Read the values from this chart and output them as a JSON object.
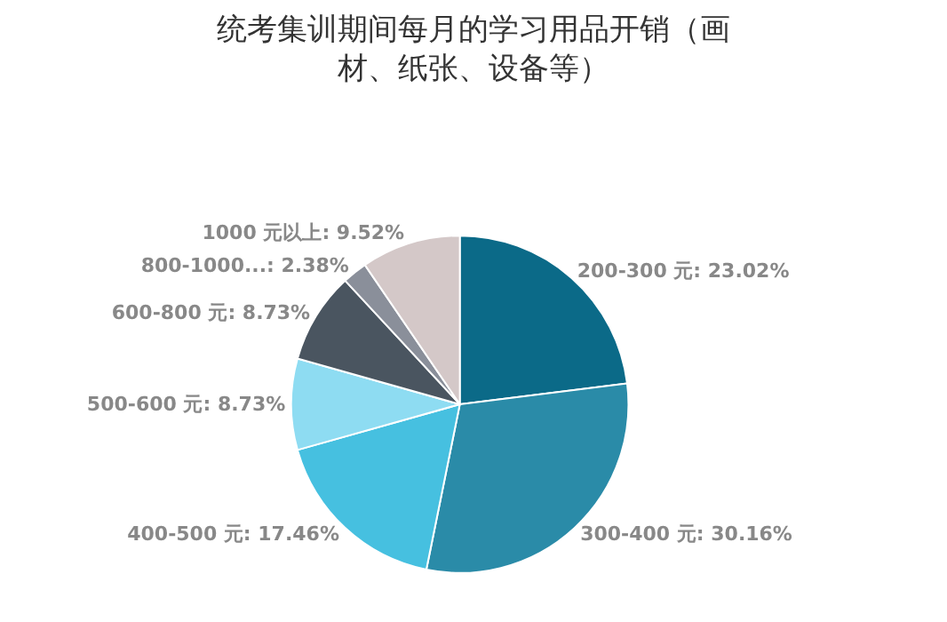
{
  "chart_data": {
    "type": "pie",
    "title": "统考集训期间每月的学习用品开销（画材、纸张、设备等）",
    "categories": [
      "200-300 元: 23.02%",
      "300-400 元: 30.16%",
      "400-500 元: 17.46%",
      "500-600 元: 8.73%",
      "600-800 元: 8.73%",
      "800-1000...: 2.38%",
      "1000 元以上: 9.52%"
    ],
    "values": [
      23.02,
      30.16,
      17.46,
      8.73,
      8.73,
      2.38,
      9.52
    ],
    "colors": [
      "#0b6a88",
      "#2a8ba8",
      "#46c0e0",
      "#8edcf2",
      "#4a5560",
      "#8a8f9a",
      "#d4c8c8"
    ],
    "legend": false
  }
}
